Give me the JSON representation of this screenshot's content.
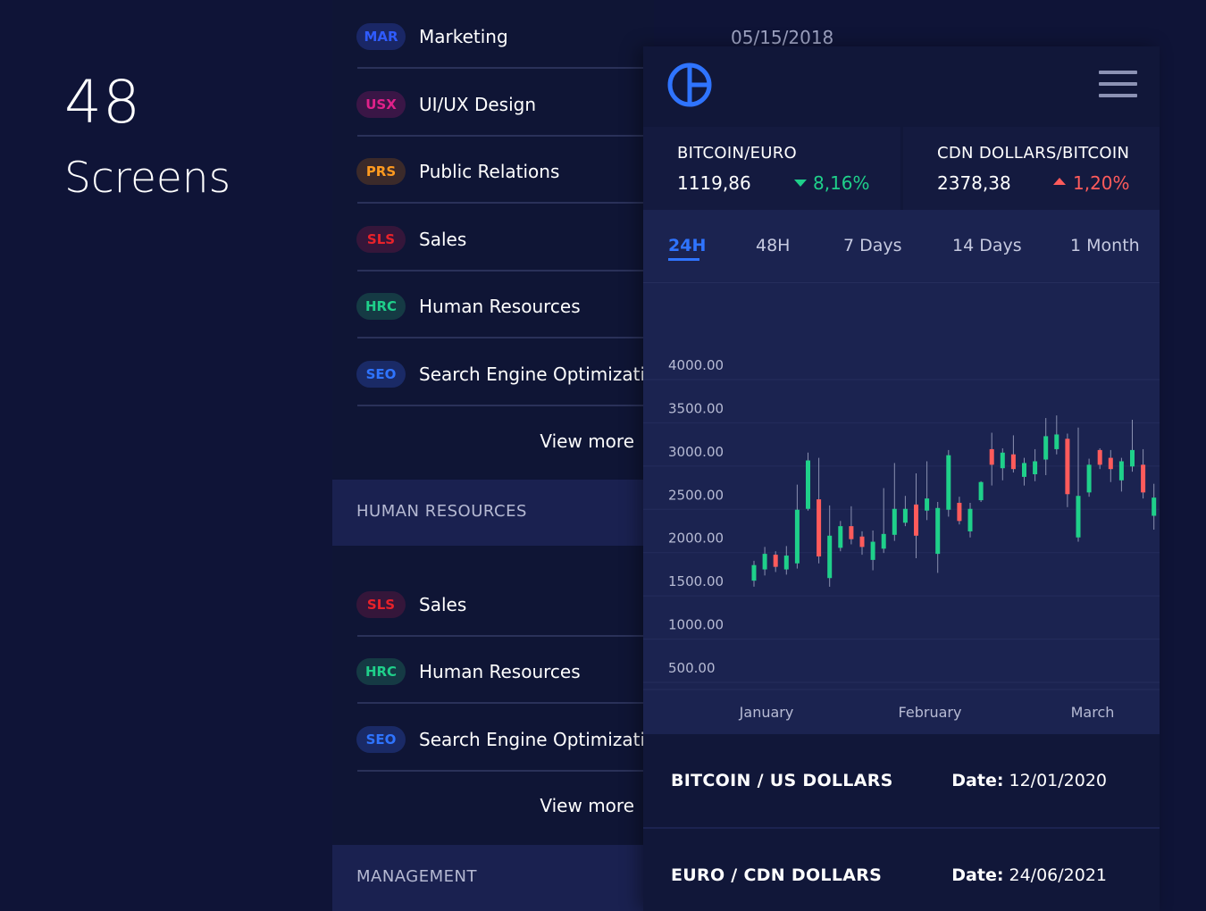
{
  "promo": {
    "number": "48",
    "word": "Screens"
  },
  "top_date": "05/15/2018",
  "list_groups": [
    {
      "items": [
        {
          "badge": "MAR",
          "label": "Marketing",
          "badge_color": "#2f5bff",
          "badge_bg": "#1a2766"
        },
        {
          "badge": "USX",
          "label": "UI/UX Design",
          "badge_color": "#e0218a",
          "badge_bg": "#3a1646"
        },
        {
          "badge": "PRS",
          "label": "Public Relations",
          "badge_color": "#ff9a1f",
          "badge_bg": "#3b2a2a"
        },
        {
          "badge": "SLS",
          "label": "Sales",
          "badge_color": "#e8222a",
          "badge_bg": "#35163a"
        },
        {
          "badge": "HRC",
          "label": "Human Resources",
          "badge_color": "#1fd08a",
          "badge_bg": "#153a44"
        },
        {
          "badge": "SEO",
          "label": "Search Engine Optimization",
          "badge_color": "#2f74ff",
          "badge_bg": "#1a2a66"
        }
      ],
      "view_more": "View more"
    },
    {
      "header": "HUMAN RESOURCES",
      "items": [
        {
          "badge": "SLS",
          "label": "Sales",
          "badge_color": "#e8222a",
          "badge_bg": "#35163a"
        },
        {
          "badge": "HRC",
          "label": "Human Resources",
          "badge_color": "#1fd08a",
          "badge_bg": "#153a44"
        },
        {
          "badge": "SEO",
          "label": "Search Engine Optimization",
          "badge_color": "#2f74ff",
          "badge_bg": "#1a2a66"
        }
      ],
      "view_more": "View more"
    }
  ],
  "bottom_section_header": "MANAGEMENT",
  "app": {
    "logo_icon": "globe-logo-icon",
    "menu_icon": "hamburger-menu-icon",
    "accent": "#2f74ff",
    "tickers": [
      {
        "title": "BITCOIN/EURO",
        "value": "1119,86",
        "change": "8,16%",
        "direction": "down",
        "color": "#1fd08a"
      },
      {
        "title": "CDN DOLLARS/BITCOIN",
        "value": "2378,38",
        "change": "1,20%",
        "direction": "up",
        "color": "#ff5b5b"
      }
    ],
    "tabs": [
      "24H",
      "48H",
      "7 Days",
      "14 Days",
      "1 Month"
    ],
    "active_tab": "24H",
    "pairs": [
      {
        "name": "BITCOIN / US DOLLARS",
        "date_label": "Date:",
        "date": "12/01/2020"
      },
      {
        "name": "EURO / CDN DOLLARS",
        "date_label": "Date:",
        "date": "24/06/2021"
      }
    ]
  },
  "chart_data": {
    "type": "candlestick",
    "title": "",
    "xlabel": "",
    "ylabel": "",
    "y_ticks": [
      "4000.00",
      "3500.00",
      "3000.00",
      "2500.00",
      "2000.00",
      "1500.00",
      "1000.00",
      "500.00"
    ],
    "y_tick_values": [
      4000,
      3500,
      3000,
      2500,
      2000,
      1500,
      1000,
      500
    ],
    "ylim": [
      500,
      4000
    ],
    "x_labels": [
      "January",
      "February",
      "March"
    ],
    "up_color": "#1fd08a",
    "down_color": "#ff5b5b",
    "candles": [
      {
        "o": 1500,
        "c": 1680,
        "h": 1730,
        "l": 1430
      },
      {
        "o": 1630,
        "c": 1810,
        "h": 1890,
        "l": 1560
      },
      {
        "o": 1800,
        "c": 1660,
        "h": 1840,
        "l": 1600
      },
      {
        "o": 1630,
        "c": 1790,
        "h": 1900,
        "l": 1570
      },
      {
        "o": 1700,
        "c": 2320,
        "h": 2610,
        "l": 1640
      },
      {
        "o": 2330,
        "c": 2890,
        "h": 2980,
        "l": 2310
      },
      {
        "o": 2440,
        "c": 1780,
        "h": 2920,
        "l": 1700
      },
      {
        "o": 1530,
        "c": 2020,
        "h": 2370,
        "l": 1430
      },
      {
        "o": 1880,
        "c": 2130,
        "h": 2190,
        "l": 1840
      },
      {
        "o": 2130,
        "c": 1980,
        "h": 2360,
        "l": 1920
      },
      {
        "o": 2010,
        "c": 1890,
        "h": 2070,
        "l": 1800
      },
      {
        "o": 1740,
        "c": 1950,
        "h": 2080,
        "l": 1620
      },
      {
        "o": 1870,
        "c": 2040,
        "h": 2570,
        "l": 1820
      },
      {
        "o": 2030,
        "c": 2330,
        "h": 2860,
        "l": 1960
      },
      {
        "o": 2170,
        "c": 2330,
        "h": 2480,
        "l": 2130
      },
      {
        "o": 2380,
        "c": 2020,
        "h": 2740,
        "l": 1760
      },
      {
        "o": 2310,
        "c": 2450,
        "h": 2880,
        "l": 2200
      },
      {
        "o": 1810,
        "c": 2340,
        "h": 2410,
        "l": 1590
      },
      {
        "o": 2320,
        "c": 2950,
        "h": 3010,
        "l": 2240
      },
      {
        "o": 2400,
        "c": 2190,
        "h": 2470,
        "l": 2150
      },
      {
        "o": 2070,
        "c": 2330,
        "h": 2400,
        "l": 2000
      },
      {
        "o": 2430,
        "c": 2640,
        "h": 2650,
        "l": 2410
      },
      {
        "o": 3020,
        "c": 2840,
        "h": 3210,
        "l": 2600
      },
      {
        "o": 2800,
        "c": 2980,
        "h": 3030,
        "l": 2660
      },
      {
        "o": 2960,
        "c": 2790,
        "h": 3180,
        "l": 2750
      },
      {
        "o": 2700,
        "c": 2860,
        "h": 2920,
        "l": 2600
      },
      {
        "o": 2730,
        "c": 2880,
        "h": 3020,
        "l": 2650
      },
      {
        "o": 2900,
        "c": 3170,
        "h": 3380,
        "l": 2720
      },
      {
        "o": 3020,
        "c": 3190,
        "h": 3410,
        "l": 2960
      },
      {
        "o": 3140,
        "c": 2500,
        "h": 3200,
        "l": 2350
      },
      {
        "o": 2000,
        "c": 2480,
        "h": 3270,
        "l": 1950
      },
      {
        "o": 2520,
        "c": 2840,
        "h": 2910,
        "l": 2470
      },
      {
        "o": 3010,
        "c": 2840,
        "h": 3030,
        "l": 2790
      },
      {
        "o": 2920,
        "c": 2790,
        "h": 3010,
        "l": 2640
      },
      {
        "o": 2660,
        "c": 2880,
        "h": 2920,
        "l": 2530
      },
      {
        "o": 2820,
        "c": 3010,
        "h": 3360,
        "l": 2760
      },
      {
        "o": 2840,
        "c": 2520,
        "h": 3020,
        "l": 2450
      },
      {
        "o": 2250,
        "c": 2460,
        "h": 2620,
        "l": 2090
      }
    ]
  }
}
